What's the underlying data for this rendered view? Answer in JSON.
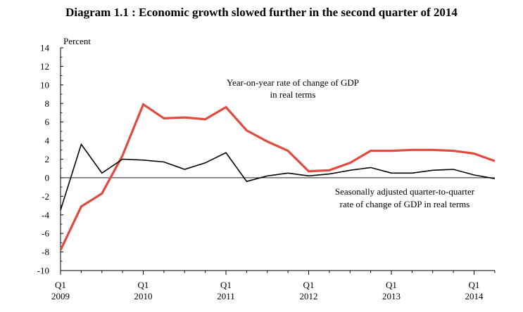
{
  "title": "Diagram 1.1 : Economic growth slowed further in the second quarter of 2014",
  "chart_data": {
    "type": "line",
    "title": "Diagram 1.1 : Economic growth slowed further in the second quarter of 2014",
    "ylabel": "Percent",
    "xlabel": "",
    "ylim": [
      -10,
      14
    ],
    "yticks": [
      "14",
      "12",
      "10",
      "8",
      "6",
      "4",
      "2",
      "0",
      "-2",
      "-4",
      "-6",
      "-8",
      "-10"
    ],
    "xticks": [
      {
        "q": "Q1",
        "year": "2009"
      },
      {
        "q": "Q1",
        "year": "2010"
      },
      {
        "q": "Q1",
        "year": "2011"
      },
      {
        "q": "Q1",
        "year": "2012"
      },
      {
        "q": "Q1",
        "year": "2013"
      },
      {
        "q": "Q1",
        "year": "2014"
      }
    ],
    "categories": [
      "2009Q1",
      "2009Q2",
      "2009Q3",
      "2009Q4",
      "2010Q1",
      "2010Q2",
      "2010Q3",
      "2010Q4",
      "2011Q1",
      "2011Q2",
      "2011Q3",
      "2011Q4",
      "2012Q1",
      "2012Q2",
      "2012Q3",
      "2012Q4",
      "2013Q1",
      "2013Q2",
      "2013Q3",
      "2013Q4",
      "2014Q1",
      "2014Q2"
    ],
    "series": [
      {
        "name": "Year-on-year rate of change of GDP in real terms",
        "color": "#e04a3f",
        "values": [
          -7.8,
          -3.1,
          -1.7,
          2.4,
          7.9,
          6.4,
          6.5,
          6.3,
          7.6,
          5.1,
          3.9,
          2.9,
          0.7,
          0.8,
          1.6,
          2.9,
          2.9,
          3.0,
          3.0,
          2.9,
          2.6,
          1.8
        ]
      },
      {
        "name": "Seasonally adjusted quarter-to-quarter rate of change of GDP in real terms",
        "color": "#000000",
        "values": [
          -3.5,
          3.6,
          0.5,
          2.0,
          1.9,
          1.7,
          0.9,
          1.6,
          2.7,
          -0.4,
          0.2,
          0.5,
          0.2,
          0.4,
          0.8,
          1.1,
          0.5,
          0.5,
          0.8,
          0.9,
          0.3,
          -0.1
        ]
      }
    ],
    "annotations": {
      "yoy_line1": "Year-on-year rate of change of GDP",
      "yoy_line2": "in real terms",
      "qoq_line1": "Seasonally adjusted quarter-to-quarter",
      "qoq_line2": "rate of change of GDP in real terms"
    },
    "grid": false,
    "zero_line": true
  }
}
